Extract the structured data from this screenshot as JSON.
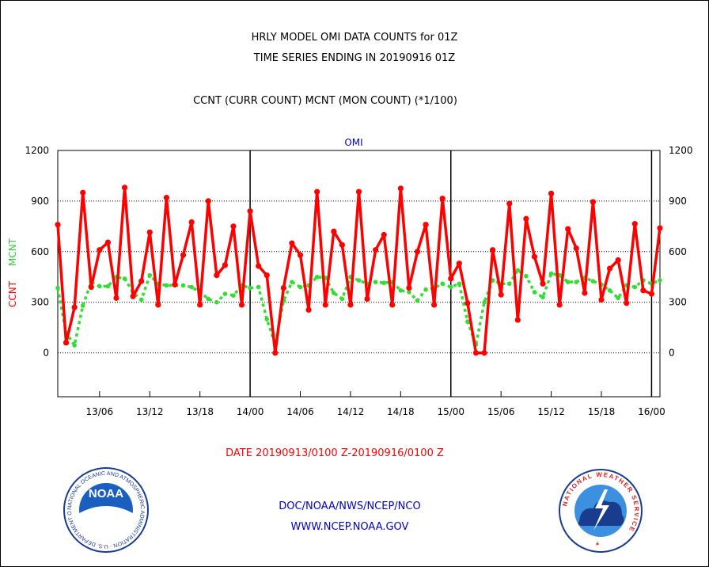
{
  "header": {
    "title_line1": "HRLY MODEL OMI DATA COUNTS for 01Z",
    "title_line2": "TIME SERIES ENDING IN 20190916 01Z",
    "subtitle": "CCNT (CURR COUNT) MCNT (MON COUNT) (*1/100)"
  },
  "chart_data": {
    "type": "line",
    "title": "OMI",
    "ylabel_left": "CCNT",
    "ylabel_left2": "MCNT",
    "xlabel": "DATE 20190913/0100 Z-20190916/0100 Z",
    "ylim": [
      -260,
      1200
    ],
    "y_ticks": [
      0,
      300,
      600,
      900,
      1200
    ],
    "xlim": [
      1,
      73
    ],
    "x_tick_hours": [
      6,
      12,
      18,
      24,
      30,
      36,
      42,
      48,
      54,
      60,
      66,
      72
    ],
    "x_tick_labels": [
      "13/06",
      "13/12",
      "13/18",
      "14/00",
      "14/06",
      "14/12",
      "14/18",
      "15/00",
      "15/06",
      "15/12",
      "15/18",
      "16/00"
    ],
    "day_boundaries": [
      24,
      48,
      72
    ],
    "grid": true,
    "colors": {
      "ccnt": "#ff0000",
      "mcnt": "#33dd33",
      "title": "#0000cc"
    },
    "series": [
      {
        "name": "CCNT",
        "values": [
          760,
          60,
          270,
          950,
          390,
          610,
          655,
          325,
          980,
          335,
          425,
          715,
          285,
          920,
          405,
          580,
          775,
          285,
          900,
          460,
          520,
          750,
          285,
          840,
          515,
          460,
          0,
          385,
          650,
          580,
          255,
          955,
          285,
          720,
          640,
          285,
          955,
          320,
          610,
          700,
          285,
          975,
          385,
          600,
          760,
          285,
          915,
          440,
          530,
          295,
          0,
          0,
          610,
          345,
          885,
          195,
          795,
          570,
          410,
          945,
          285,
          735,
          620,
          355,
          895,
          315,
          500,
          550,
          295,
          765,
          370,
          350,
          740
        ]
      },
      {
        "name": "MCNT",
        "values": [
          385,
          120,
          45,
          280,
          420,
          395,
          395,
          450,
          440,
          360,
          315,
          460,
          410,
          400,
          400,
          400,
          390,
          360,
          320,
          300,
          350,
          340,
          400,
          385,
          390,
          200,
          50,
          310,
          420,
          390,
          400,
          450,
          445,
          355,
          320,
          450,
          430,
          410,
          420,
          415,
          420,
          370,
          360,
          310,
          375,
          385,
          410,
          390,
          410,
          185,
          50,
          300,
          430,
          410,
          410,
          490,
          455,
          360,
          330,
          470,
          460,
          420,
          420,
          445,
          425,
          405,
          370,
          325,
          400,
          390,
          430,
          410,
          430
        ]
      }
    ]
  },
  "footer": {
    "agency_line": "DOC/NOAA/NWS/NCEP/NCO",
    "url": "WWW.NCEP.NOAA.GOV",
    "noaa_logo_text": "NOAA",
    "noaa_ring_text": "NATIONAL OCEANIC AND ATMOSPHERIC ADMINISTRATION · U.S. DEPARTMENT OF COMMERCE ·",
    "nws_ring_text": "NATIONAL WEATHER SERVICE"
  }
}
